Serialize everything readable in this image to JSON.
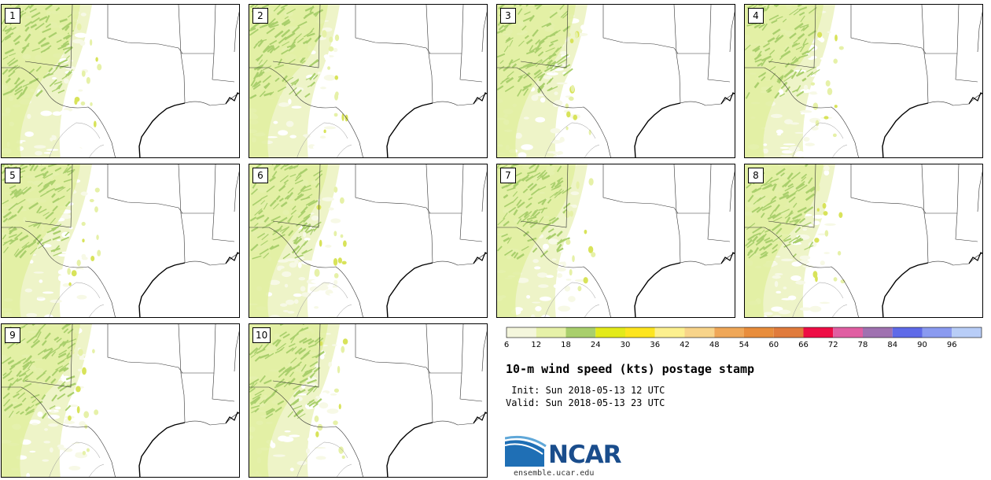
{
  "title": "10-m wind speed (kts) postage stamp",
  "init_label": " Init: Sun 2018-05-13 12 UTC",
  "valid_label": "Valid: Sun 2018-05-13 23 UTC",
  "logo": {
    "text": "NCAR",
    "site": "ensemble.ucar.edu"
  },
  "members": [
    "1",
    "2",
    "3",
    "4",
    "5",
    "6",
    "7",
    "8",
    "9",
    "10"
  ],
  "legend": {
    "ticks": [
      "6",
      "12",
      "18",
      "24",
      "30",
      "36",
      "42",
      "48",
      "54",
      "60",
      "66",
      "72",
      "78",
      "84",
      "90",
      "96"
    ],
    "colors": [
      "#f4f6dc",
      "#e6f1a8",
      "#a9cf6c",
      "#e3ea1a",
      "#fde51f",
      "#fcf08f",
      "#f8d48a",
      "#efa758",
      "#e88d3c",
      "#e07b3c",
      "#ee0d45",
      "#e05ea2",
      "#9f71b0",
      "#5f6ae8",
      "#8a9af0",
      "#b8cdf7"
    ]
  }
}
